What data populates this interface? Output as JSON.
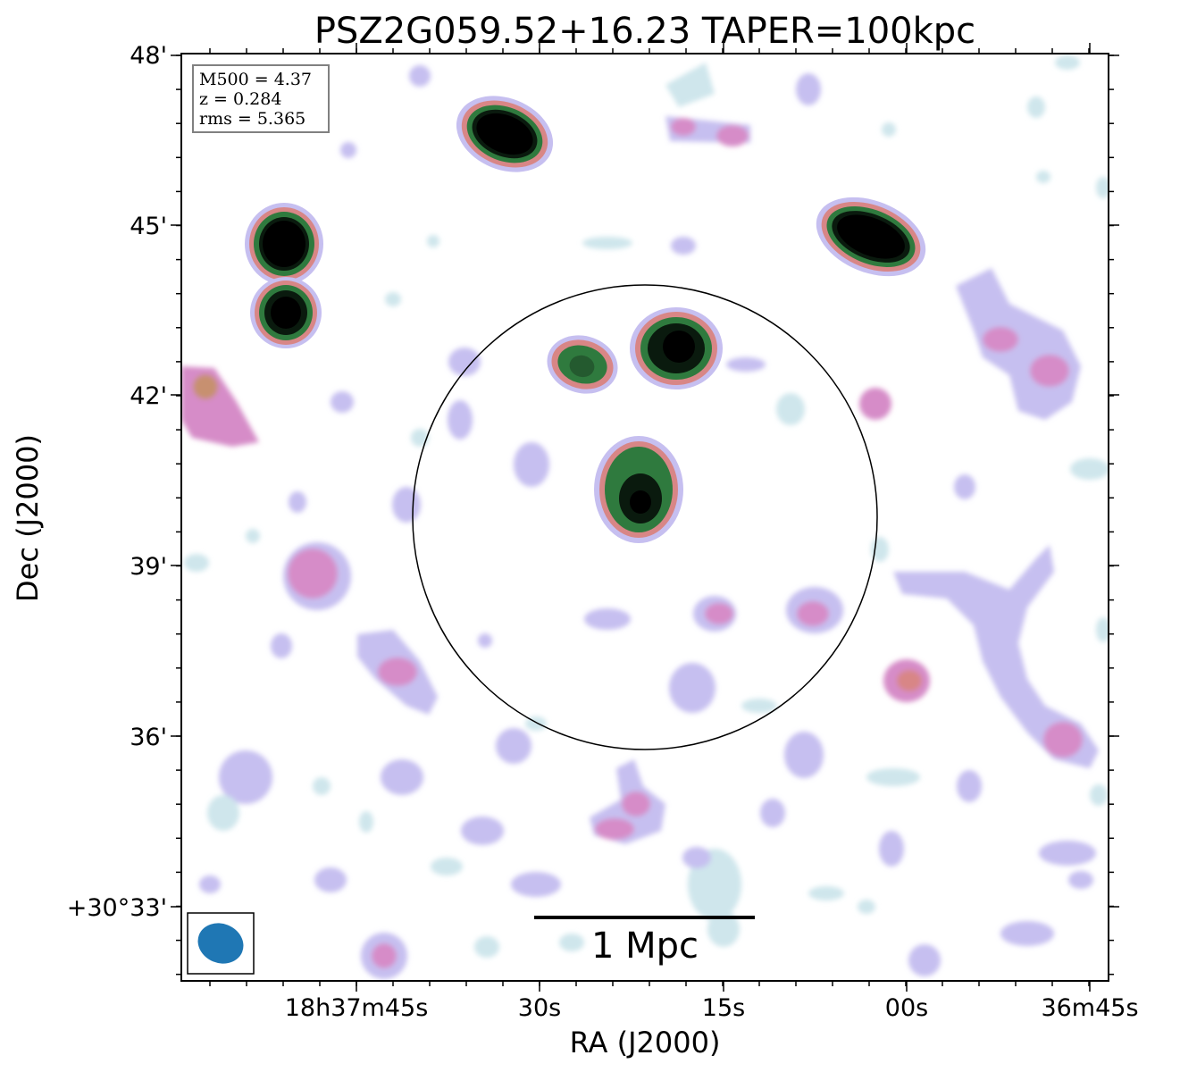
{
  "chart_data": {
    "type": "heatmap",
    "title": "PSZ2G059.52+16.23 TAPER=100kpc",
    "xlabel": "RA (J2000)",
    "ylabel": "Dec (J2000)",
    "x_ticks": [
      "18h37m45s",
      "30s",
      "15s",
      "00s",
      "36m45s"
    ],
    "y_ticks": [
      "48'",
      "45'",
      "42'",
      "39'",
      "36'",
      "+30°33'"
    ],
    "info": [
      "M500 = 4.37",
      "z = 0.284",
      "rms = 5.365"
    ],
    "scalebar_label": "1 Mpc",
    "colors": {
      "faint": "#cfe6ec",
      "low": "#c6bff0",
      "mid": "#d68cc8",
      "rim": "#d88686",
      "ring": "#2f7a3e",
      "peak": "#000000",
      "beam": "#1f77b4"
    },
    "sources": [
      {
        "name": "north-compact-source",
        "level": "peak"
      },
      {
        "name": "northeast-compact-source",
        "level": "peak"
      },
      {
        "name": "northwest-double-source-upper",
        "level": "peak"
      },
      {
        "name": "northwest-double-source-lower",
        "level": "peak"
      },
      {
        "name": "central-compact-source",
        "level": "peak"
      },
      {
        "name": "upper-middle-source",
        "level": "peak"
      },
      {
        "name": "upper-left-source",
        "level": "ring"
      }
    ]
  }
}
